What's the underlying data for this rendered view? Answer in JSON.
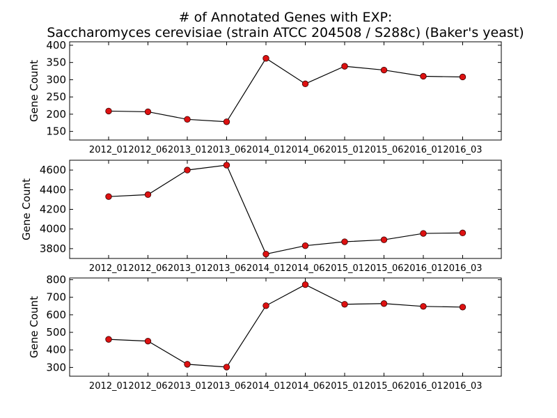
{
  "title_line1": "# of Annotated Genes with EXP:",
  "title_line2": "Saccharomyces cerevisiae (strain ATCC 204508 / S288c) (Baker's yeast)",
  "colors": {
    "line": "#000000",
    "marker": "#dd1111",
    "marker_edge": "#330000",
    "axes": "#000000"
  },
  "chart_data": [
    {
      "type": "line",
      "categories": [
        "2012_01",
        "2012_06",
        "2013_01",
        "2013_06",
        "2014_01",
        "2014_06",
        "2015_01",
        "2015_06",
        "2016_01",
        "2016_03"
      ],
      "values": [
        209,
        207,
        185,
        178,
        362,
        288,
        339,
        328,
        310,
        308
      ],
      "ylabel": "Gene Count",
      "ylim": [
        125,
        410
      ],
      "yticks": [
        150,
        200,
        250,
        300,
        350,
        400
      ],
      "grid": false
    },
    {
      "type": "line",
      "categories": [
        "2012_01",
        "2012_06",
        "2013_01",
        "2013_06",
        "2014_01",
        "2014_06",
        "2015_01",
        "2015_06",
        "2016_01",
        "2016_03"
      ],
      "values": [
        4330,
        4350,
        4600,
        4650,
        3745,
        3830,
        3870,
        3890,
        3955,
        3960
      ],
      "ylabel": "Gene Count",
      "ylim": [
        3700,
        4700
      ],
      "yticks": [
        3800,
        4000,
        4200,
        4400,
        4600
      ],
      "grid": false
    },
    {
      "type": "line",
      "categories": [
        "2012_01",
        "2012_06",
        "2013_01",
        "2013_06",
        "2014_01",
        "2014_06",
        "2015_01",
        "2015_06",
        "2016_01",
        "2016_03"
      ],
      "values": [
        460,
        450,
        318,
        302,
        652,
        772,
        660,
        664,
        648,
        644
      ],
      "ylabel": "Gene Count",
      "ylim": [
        250,
        810
      ],
      "yticks": [
        300,
        400,
        500,
        600,
        700,
        800
      ],
      "grid": false
    }
  ]
}
